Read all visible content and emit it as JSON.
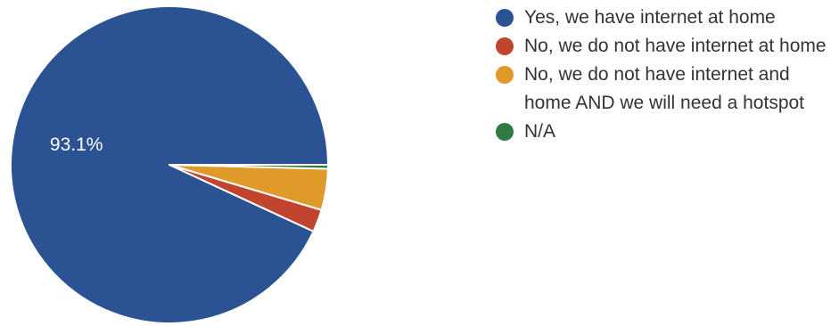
{
  "chart_data": {
    "type": "pie",
    "slices": [
      {
        "label": "Yes, we have internet at home",
        "value": 93.1,
        "color": "#2b5393",
        "value_label": "93.1%"
      },
      {
        "label": "No, we do not have internet at home",
        "value": 2.3,
        "color": "#c0442e",
        "value_label": ""
      },
      {
        "label": "No, we do not have internet and home AND we will need a hotspot",
        "value": 4.2,
        "color": "#e09a2a",
        "value_label": ""
      },
      {
        "label": "N/A",
        "value": 0.4,
        "color": "#2f7a45",
        "value_label": ""
      }
    ],
    "start_angle_deg": 0,
    "direction": "counterclockwise",
    "legend_position": "right"
  }
}
